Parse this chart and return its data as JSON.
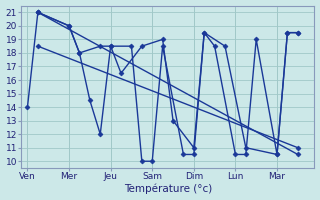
{
  "xlabel": "Température (°c)",
  "bg_color": "#cce8e8",
  "line_color": "#1a3898",
  "grid_color": "#a0c8c8",
  "ylim": [
    9.5,
    21.5
  ],
  "yticks": [
    10,
    11,
    12,
    13,
    14,
    15,
    16,
    17,
    18,
    19,
    20,
    21
  ],
  "days": [
    "Ven",
    "Mer",
    "Jeu",
    "Sam",
    "Dim",
    "Lun",
    "Mar"
  ],
  "day_x": [
    0,
    2,
    4,
    6,
    8,
    10,
    12
  ],
  "xlim": [
    -0.3,
    13.8
  ],
  "line1_x": [
    0,
    0.5,
    2,
    2.5,
    3,
    3.5,
    4,
    5,
    5.5,
    6,
    6.5,
    7.5,
    8,
    8.5,
    9,
    10,
    10.5,
    11,
    12,
    12.5,
    13
  ],
  "line1_y": [
    14,
    21,
    20,
    18,
    14.5,
    12,
    18.5,
    18.5,
    10.0,
    10.0,
    18.5,
    10.5,
    10.5,
    19.5,
    18.5,
    10.5,
    10.5,
    19.0,
    10.5,
    19.5,
    19.5
  ],
  "line2_x": [
    0.5,
    2,
    2.5,
    3.5,
    4,
    4.5,
    5.5,
    6.5,
    7,
    8,
    8.5,
    9.5,
    10.5,
    12,
    12.5,
    13
  ],
  "line2_y": [
    21,
    20,
    18,
    18.5,
    18.5,
    16.5,
    18.5,
    19.0,
    13,
    11,
    19.5,
    18.5,
    11,
    10.5,
    19.5,
    19.5
  ],
  "trend1_x": [
    0.5,
    13
  ],
  "trend1_y": [
    21.0,
    10.5
  ],
  "trend2_x": [
    0.5,
    13
  ],
  "trend2_y": [
    18.5,
    11.0
  ],
  "marker": "D",
  "markersize": 2.5,
  "linewidth": 1.0
}
